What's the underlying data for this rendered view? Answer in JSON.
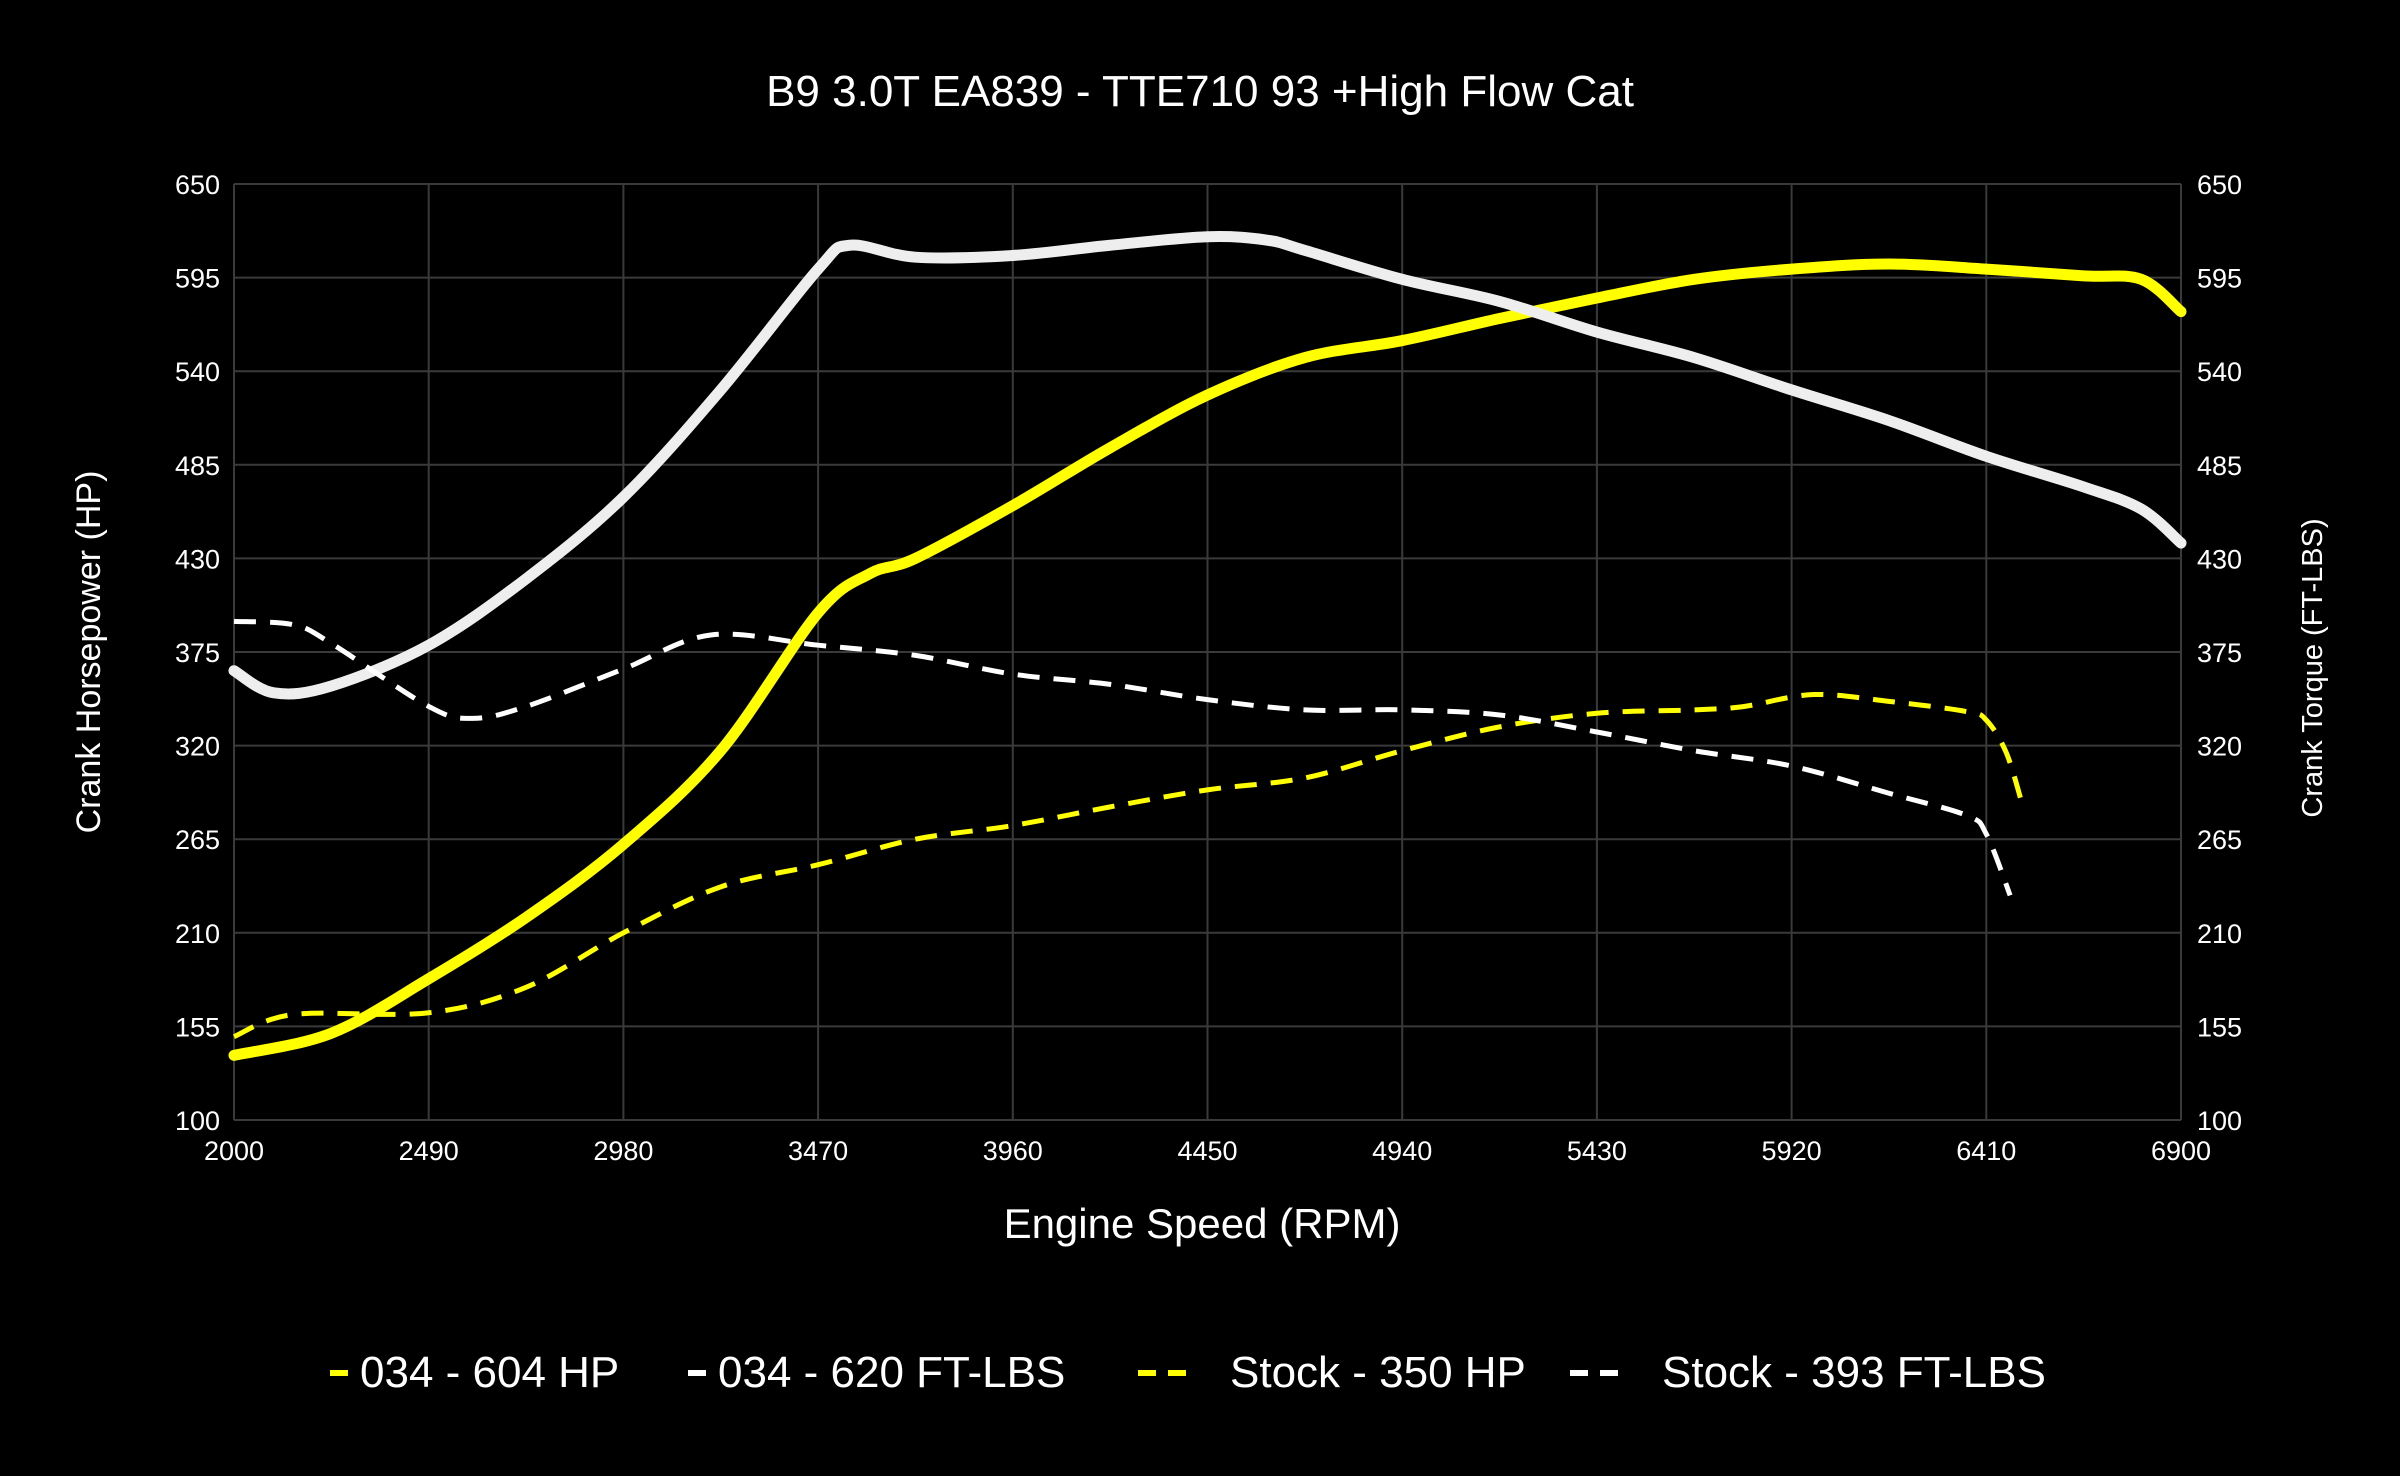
{
  "chart_data": {
    "type": "line",
    "title": "B9 3.0T EA839 - TTE710 93 +High Flow Cat",
    "xlabel": "Engine Speed (RPM)",
    "ylabel": "Crank Horsepower (HP)",
    "y2label": "Crank Torque (FT-LBS)",
    "xlim": [
      2000,
      6900
    ],
    "ylim": [
      100,
      650
    ],
    "y2lim": [
      100,
      650
    ],
    "x_ticks": [
      "2000",
      "2490",
      "2980",
      "3470",
      "3960",
      "4450",
      "4940",
      "5430",
      "5920",
      "6410",
      "6900"
    ],
    "y_ticks": [
      "100",
      "155",
      "210",
      "265",
      "320",
      "375",
      "430",
      "485",
      "540",
      "595",
      "650"
    ],
    "grid": true,
    "legend_position": "bottom",
    "background": "#000000",
    "series": [
      {
        "name": "034 - 604 HP",
        "color": "#ffff00",
        "style": "solid",
        "axis": "left",
        "x": [
          2000,
          2245,
          2490,
          2735,
          2980,
          3225,
          3470,
          3600,
          3715,
          3960,
          4205,
          4450,
          4695,
          4940,
          5185,
          5430,
          5675,
          5920,
          6165,
          6410,
          6655,
          6800,
          6900
        ],
        "y": [
          138,
          151,
          183,
          219,
          262,
          317,
          398,
          421,
          430,
          461,
          495,
          526,
          548,
          558,
          571,
          583,
          594,
          600,
          603,
          600,
          596,
          594,
          575
        ]
      },
      {
        "name": "034 - 620 FT-LBS",
        "color": "#eeeeee",
        "style": "solid",
        "axis": "right",
        "x": [
          2000,
          2100,
          2245,
          2490,
          2735,
          2980,
          3225,
          3470,
          3550,
          3715,
          3960,
          4205,
          4450,
          4600,
          4695,
          4940,
          5185,
          5430,
          5675,
          5920,
          6165,
          6410,
          6655,
          6800,
          6900
        ],
        "y": [
          364,
          351,
          355,
          379,
          418,
          466,
          529,
          600,
          614,
          607,
          608,
          614,
          619,
          617,
          611,
          594,
          581,
          563,
          548,
          529,
          511,
          490,
          472,
          459,
          439
        ]
      },
      {
        "name": "Stock - 350 HP",
        "color": "#ffff00",
        "style": "dashed",
        "axis": "left",
        "x": [
          2000,
          2150,
          2490,
          2735,
          2980,
          3225,
          3470,
          3715,
          3960,
          4205,
          4450,
          4695,
          4940,
          5185,
          5430,
          5675,
          5800,
          5975,
          6165,
          6360,
          6410,
          6460,
          6500
        ],
        "y": [
          149,
          162,
          163,
          178,
          210,
          237,
          250,
          265,
          273,
          284,
          294,
          301,
          317,
          331,
          339,
          341,
          343,
          350,
          346,
          340,
          335,
          316,
          286
        ]
      },
      {
        "name": "Stock - 393 FT-LBS",
        "color": "#ffffff",
        "style": "dashed",
        "axis": "right",
        "x": [
          2000,
          2150,
          2245,
          2490,
          2600,
          2735,
          2980,
          3200,
          3470,
          3715,
          3960,
          4205,
          4450,
          4695,
          4940,
          5185,
          5430,
          5675,
          5920,
          6165,
          6360,
          6410,
          6470
        ],
        "y": [
          393,
          391,
          380,
          343,
          336,
          343,
          365,
          385,
          379,
          373,
          362,
          356,
          347,
          341,
          341,
          338,
          328,
          317,
          308,
          292,
          279,
          268,
          232
        ]
      }
    ]
  }
}
